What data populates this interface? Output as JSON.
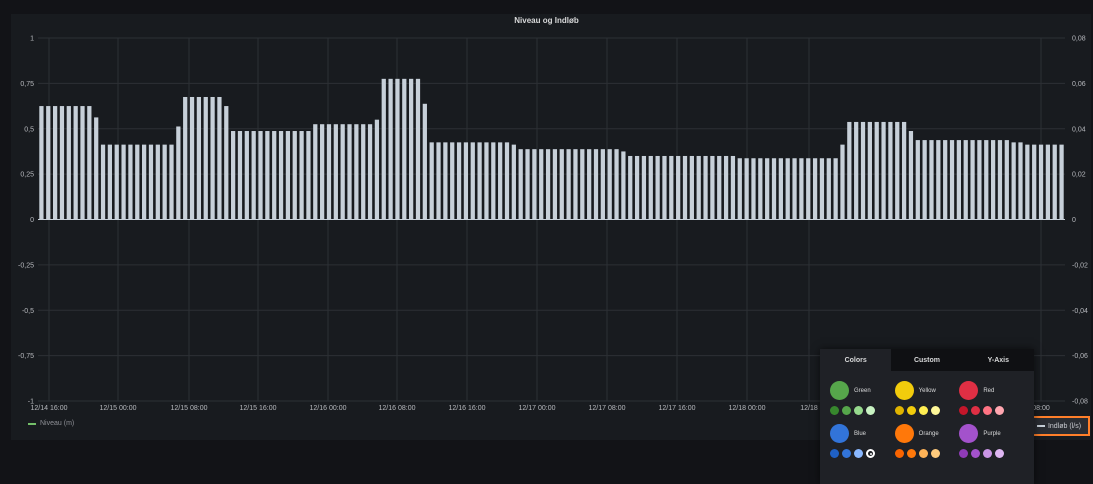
{
  "chart_data": {
    "type": "bar",
    "title": "Niveau og Indløb",
    "left_axis": {
      "ylim": [
        -1,
        1
      ],
      "ticks": [
        "1",
        "0,75",
        "0,5",
        "0,25",
        "0",
        "-0,25",
        "-0,5",
        "-0,75",
        "-1"
      ]
    },
    "right_axis": {
      "ylim": [
        -0.08,
        0.08
      ],
      "ticks": [
        "0,08",
        "0,06",
        "0,04",
        "0,02",
        "0",
        "-0,02",
        "-0,04",
        "-0,06",
        "-0,08"
      ]
    },
    "x_ticks": [
      "12/14 16:00",
      "12/15 00:00",
      "12/15 08:00",
      "12/15 16:00",
      "12/16 00:00",
      "12/16 08:00",
      "12/16 16:00",
      "12/17 00:00",
      "12/17 08:00",
      "12/17 16:00",
      "12/18 00:00",
      "12/18",
      "08:00"
    ],
    "grid": true,
    "series": [
      {
        "name": "Niveau (m)",
        "color": "#73bf69",
        "values": []
      },
      {
        "name": "Indløb (l/s)",
        "color": "#c7d0d9",
        "axis": "right",
        "values": [
          0.05,
          0.05,
          0.05,
          0.05,
          0.05,
          0.05,
          0.05,
          0.05,
          0.045,
          0.033,
          0.033,
          0.033,
          0.033,
          0.033,
          0.033,
          0.033,
          0.033,
          0.033,
          0.033,
          0.033,
          0.041,
          0.054,
          0.054,
          0.054,
          0.054,
          0.054,
          0.054,
          0.05,
          0.039,
          0.039,
          0.039,
          0.039,
          0.039,
          0.039,
          0.039,
          0.039,
          0.039,
          0.039,
          0.039,
          0.039,
          0.042,
          0.042,
          0.042,
          0.042,
          0.042,
          0.042,
          0.042,
          0.042,
          0.042,
          0.044,
          0.062,
          0.062,
          0.062,
          0.062,
          0.062,
          0.062,
          0.051,
          0.034,
          0.034,
          0.034,
          0.034,
          0.034,
          0.034,
          0.034,
          0.034,
          0.034,
          0.034,
          0.034,
          0.034,
          0.033,
          0.031,
          0.031,
          0.031,
          0.031,
          0.031,
          0.031,
          0.031,
          0.031,
          0.031,
          0.031,
          0.031,
          0.031,
          0.031,
          0.031,
          0.031,
          0.03,
          0.028,
          0.028,
          0.028,
          0.028,
          0.028,
          0.028,
          0.028,
          0.028,
          0.028,
          0.028,
          0.028,
          0.028,
          0.028,
          0.028,
          0.028,
          0.028,
          0.027,
          0.027,
          0.027,
          0.027,
          0.027,
          0.027,
          0.027,
          0.027,
          0.027,
          0.027,
          0.027,
          0.027,
          0.027,
          0.027,
          0.027,
          0.033,
          0.043,
          0.043,
          0.043,
          0.043,
          0.043,
          0.043,
          0.043,
          0.043,
          0.043,
          0.039,
          0.035,
          0.035,
          0.035,
          0.035,
          0.035,
          0.035,
          0.035,
          0.035,
          0.035,
          0.035,
          0.035,
          0.035,
          0.035,
          0.035,
          0.034,
          0.034,
          0.033,
          0.033,
          0.033,
          0.033,
          0.033,
          0.033
        ]
      }
    ]
  },
  "legend": {
    "left_label": "Niveau (m)",
    "right_label": "Indløb (l/s)"
  },
  "picker": {
    "tabs": [
      "Colors",
      "Custom",
      "Y-Axis"
    ],
    "active_tab": 0,
    "families": [
      {
        "name": "Green",
        "color": "#56a64b",
        "shades": [
          "#37872d",
          "#56a64b",
          "#96d98d",
          "#c8f2c2"
        ]
      },
      {
        "name": "Yellow",
        "color": "#f2cc0c",
        "shades": [
          "#e0b400",
          "#f2cc0c",
          "#ffee52",
          "#fff899"
        ]
      },
      {
        "name": "Red",
        "color": "#e02f44",
        "shades": [
          "#c4162a",
          "#e02f44",
          "#ff7383",
          "#ffa6b0"
        ]
      },
      {
        "name": "Blue",
        "color": "#3274d9",
        "shades": [
          "#1f60c4",
          "#3274d9",
          "#8ab8ff",
          "#c0d8ff"
        ],
        "selected_shade": 3
      },
      {
        "name": "Orange",
        "color": "#ff780a",
        "shades": [
          "#fa6400",
          "#ff780a",
          "#ffb357",
          "#ffcb7d"
        ]
      },
      {
        "name": "Purple",
        "color": "#a352cc",
        "shades": [
          "#8f3bb8",
          "#a352cc",
          "#ca95e5",
          "#deb6f2"
        ]
      }
    ]
  }
}
